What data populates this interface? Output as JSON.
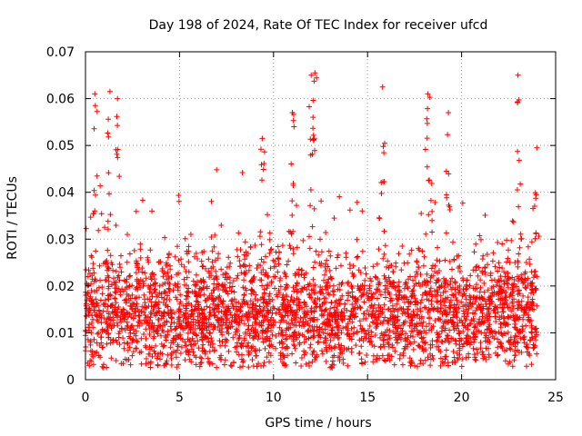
{
  "chart_data": {
    "type": "scatter",
    "title": "Day 198 of 2024, Rate Of TEC Index for receiver ufcd",
    "xlabel": "GPS time / hours",
    "ylabel": "ROTI / TECUs",
    "xlim": [
      0,
      25
    ],
    "ylim": [
      0,
      0.07
    ],
    "xticks": [
      0,
      5,
      10,
      15,
      20,
      25
    ],
    "xtick_labels": [
      "0",
      "5",
      "10",
      "15",
      "20",
      "25"
    ],
    "yticks": [
      0,
      0.01,
      0.02,
      0.03,
      0.04,
      0.05,
      0.06,
      0.07
    ],
    "ytick_labels": [
      "0",
      "0.01",
      "0.02",
      "0.03",
      "0.04",
      "0.05",
      "0.06",
      "0.07"
    ],
    "grid": true,
    "marker": "+",
    "color": "#ff0000",
    "series": [
      {
        "name": "ROTI",
        "x_range": [
          0,
          24
        ],
        "baseline_y": 0.014,
        "notable_peaks": [
          {
            "x": 0.5,
            "y": 0.061
          },
          {
            "x": 1.3,
            "y": 0.0615
          },
          {
            "x": 1.7,
            "y": 0.06
          },
          {
            "x": 9.4,
            "y": 0.0515
          },
          {
            "x": 11.0,
            "y": 0.057
          },
          {
            "x": 12.0,
            "y": 0.065
          },
          {
            "x": 12.2,
            "y": 0.0655
          },
          {
            "x": 15.8,
            "y": 0.0625
          },
          {
            "x": 18.2,
            "y": 0.061
          },
          {
            "x": 19.3,
            "y": 0.057
          },
          {
            "x": 23.0,
            "y": 0.065
          },
          {
            "x": 24.0,
            "y": 0.0495
          }
        ]
      }
    ]
  }
}
